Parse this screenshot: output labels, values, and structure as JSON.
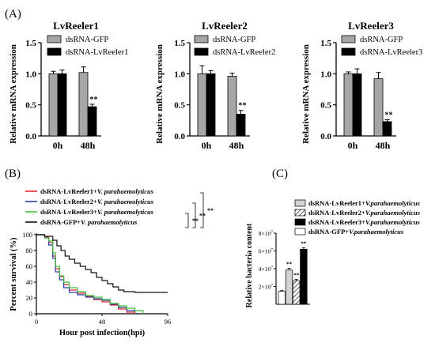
{
  "figure": {
    "panel_labels": [
      "(A)",
      "(B)",
      "(C)"
    ]
  },
  "chart_data": [
    {
      "panel": "(A)",
      "type": "bar",
      "title": "LvReeler1",
      "xlabel": "",
      "ylabel": "Relative mRNA expression",
      "ylim": [
        0,
        1.5
      ],
      "yticks": [
        "0.0",
        "0.5",
        "1.0",
        "1.5"
      ],
      "categories": [
        "0h",
        "48h"
      ],
      "series": [
        {
          "name": "dsRNA-GFP",
          "values": [
            1.0,
            1.02
          ],
          "errors": [
            0.04,
            0.09
          ],
          "color": "#a6a6a6"
        },
        {
          "name": "dsRNA-LvReeler1",
          "values": [
            1.0,
            0.47
          ],
          "errors": [
            0.06,
            0.04
          ],
          "color": "#000000"
        }
      ],
      "significance": [
        {
          "category": "48h",
          "series": 1,
          "label": "**"
        }
      ],
      "legend_position": "top-right"
    },
    {
      "panel": "(A)",
      "type": "bar",
      "title": "LvReeler2",
      "xlabel": "",
      "ylabel": "Relative mRNA expression",
      "ylim": [
        0,
        1.5
      ],
      "yticks": [
        "0.0",
        "0.5",
        "1.0",
        "1.5"
      ],
      "categories": [
        "0h",
        "48h"
      ],
      "series": [
        {
          "name": "dsRNA-GFP",
          "values": [
            1.0,
            0.96
          ],
          "errors": [
            0.13,
            0.05
          ],
          "color": "#a6a6a6"
        },
        {
          "name": "dsRNA-LvReeler2",
          "values": [
            1.0,
            0.35
          ],
          "errors": [
            0.05,
            0.06
          ],
          "color": "#000000"
        }
      ],
      "significance": [
        {
          "category": "48h",
          "series": 1,
          "label": "**"
        }
      ],
      "legend_position": "top-right"
    },
    {
      "panel": "(A)",
      "type": "bar",
      "title": "LvReeler3",
      "xlabel": "",
      "ylabel": "Relative mRNA expression",
      "ylim": [
        0,
        1.5
      ],
      "yticks": [
        "0.0",
        "0.5",
        "1.0",
        "1.5"
      ],
      "categories": [
        "0h",
        "48h"
      ],
      "series": [
        {
          "name": "dsRNA-GFP",
          "values": [
            1.0,
            0.92
          ],
          "errors": [
            0.03,
            0.1
          ],
          "color": "#a6a6a6"
        },
        {
          "name": "dsRNA-LvReeler3",
          "values": [
            1.0,
            0.23
          ],
          "errors": [
            0.08,
            0.03
          ],
          "color": "#000000"
        }
      ],
      "significance": [
        {
          "category": "48h",
          "series": 1,
          "label": "**"
        }
      ],
      "legend_position": "top-right"
    },
    {
      "panel": "(B)",
      "type": "line",
      "step": true,
      "xlabel": "Hour post infection(hpi)",
      "ylabel": "Percent survival (%)",
      "xlim": [
        0,
        96
      ],
      "ylim": [
        0,
        100
      ],
      "xticks": [
        "0",
        "48",
        "96"
      ],
      "yticks": [
        "0",
        "20",
        "40",
        "60",
        "80",
        "100"
      ],
      "series": [
        {
          "name": "dsRNA-LvReeler1+V. parahaemolyticus",
          "color": "#e8262b",
          "x": [
            0,
            6,
            9,
            12,
            14,
            17,
            20,
            24,
            30,
            36,
            42,
            48,
            54,
            60,
            66,
            72
          ],
          "y": [
            100,
            97,
            90,
            73,
            57,
            47,
            37,
            30,
            26,
            22,
            18,
            15,
            11,
            6,
            2,
            0
          ]
        },
        {
          "name": "dsRNA-LvReeler2+V. parahaemolyticus",
          "color": "#2b3ea8",
          "x": [
            0,
            6,
            9,
            12,
            14,
            17,
            20,
            24,
            30,
            36,
            42,
            48,
            54,
            60,
            66,
            72
          ],
          "y": [
            100,
            96,
            87,
            70,
            53,
            43,
            33,
            27,
            24,
            21,
            19,
            17,
            12,
            8,
            4,
            2
          ]
        },
        {
          "name": "dsRNA-LvReeler3+V. parahaemolyticus",
          "color": "#3dbd3d",
          "x": [
            0,
            6,
            9,
            12,
            14,
            17,
            20,
            24,
            30,
            36,
            42,
            48,
            54,
            60,
            66,
            72,
            78
          ],
          "y": [
            100,
            96,
            92,
            77,
            60,
            48,
            40,
            33,
            28,
            23,
            21,
            18,
            13,
            10,
            7,
            4,
            0
          ]
        },
        {
          "name": "dsRNA-GFP+V. parahaemolyticus",
          "color": "#111111",
          "x": [
            0,
            6,
            12,
            15,
            18,
            21,
            24,
            28,
            32,
            36,
            40,
            44,
            48,
            52,
            56,
            60,
            64,
            72,
            96
          ],
          "y": [
            100,
            98,
            93,
            86,
            80,
            73,
            69,
            64,
            60,
            56,
            52,
            46,
            42,
            38,
            34,
            30,
            28,
            27,
            27
          ]
        }
      ],
      "significance": [
        {
          "label": "**",
          "between": [
            "dsRNA-LvReeler3+V. parahaemolyticus",
            "dsRNA-GFP+V. parahaemolyticus"
          ]
        },
        {
          "label": "**",
          "between": [
            "dsRNA-LvReeler2+V. parahaemolyticus",
            "dsRNA-GFP+V. parahaemolyticus"
          ]
        },
        {
          "label": "**",
          "between": [
            "dsRNA-LvReeler1+V. parahaemolyticus",
            "dsRNA-GFP+V. parahaemolyticus"
          ]
        }
      ],
      "legend_position": "top"
    },
    {
      "panel": "(C)",
      "type": "bar",
      "xlabel": "",
      "ylabel": "Relative bacteria content",
      "ylim": [
        0,
        80000000
      ],
      "yticks": [
        {
          "value": 20000000,
          "coef": "2",
          "exp": "7"
        },
        {
          "value": 40000000,
          "coef": "4",
          "exp": "7"
        },
        {
          "value": 60000000,
          "coef": "6",
          "exp": "7"
        },
        {
          "value": 80000000,
          "coef": "8",
          "exp": "7"
        }
      ],
      "series": [
        {
          "name": "dsRNA-LvReeler1+V.parahaemolyticus",
          "value": 38500000,
          "error": 2000000,
          "fill": "lightgray",
          "sig": "**"
        },
        {
          "name": "dsRNA-LvReeler2+V.parahaemolyticus",
          "value": 26500000,
          "error": 1500000,
          "fill": "hatched",
          "sig": "**"
        },
        {
          "name": "dsRNA-LvReeler3+V.parahaemolyticus",
          "value": 62000000,
          "error": 1500000,
          "fill": "black",
          "sig": "**"
        },
        {
          "name": "dsRNA-GFP+V.parahaemolyticus",
          "value": 14500000,
          "error": 1000000,
          "fill": "white",
          "sig": ""
        }
      ],
      "bar_order": [
        "dsRNA-GFP+V.parahaemolyticus",
        "dsRNA-LvReeler1+V.parahaemolyticus",
        "dsRNA-LvReeler2+V.parahaemolyticus",
        "dsRNA-LvReeler3+V.parahaemolyticus"
      ],
      "legend_position": "top"
    }
  ]
}
